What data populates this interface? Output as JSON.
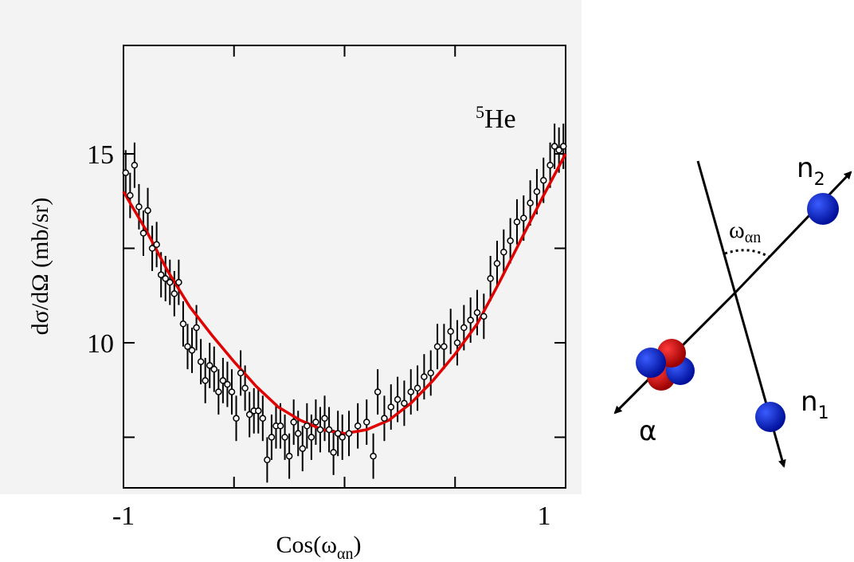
{
  "chart_data": {
    "type": "scatter",
    "annotation": {
      "mass": "5",
      "symbol": "He"
    },
    "ylabel": "dσ/dΩ (mb/sr)",
    "xlabel": {
      "prefix": "Cos(ω",
      "subscript": "αn",
      "suffix": ")"
    },
    "xlim": [
      -1,
      1
    ],
    "ylim": [
      6.16,
      17.87
    ],
    "xticks": [
      -1,
      1
    ],
    "xminor_ticks": [
      -0.5,
      0,
      0.5
    ],
    "yticks": [
      10,
      15
    ],
    "yminor_ticks": [
      7.5,
      12.5
    ],
    "marker_color": "#000000",
    "error": 0.6,
    "x": [
      -0.99,
      -0.97,
      -0.95,
      -0.93,
      -0.91,
      -0.89,
      -0.87,
      -0.85,
      -0.83,
      -0.81,
      -0.79,
      -0.77,
      -0.75,
      -0.73,
      -0.71,
      -0.69,
      -0.67,
      -0.65,
      -0.63,
      -0.61,
      -0.59,
      -0.57,
      -0.55,
      -0.53,
      -0.51,
      -0.49,
      -0.47,
      -0.45,
      -0.43,
      -0.41,
      -0.39,
      -0.37,
      -0.35,
      -0.33,
      -0.31,
      -0.29,
      -0.27,
      -0.25,
      -0.23,
      -0.21,
      -0.19,
      -0.17,
      -0.15,
      -0.13,
      -0.11,
      -0.09,
      -0.07,
      -0.05,
      -0.03,
      -0.01,
      0.02,
      0.06,
      0.1,
      0.13,
      0.15,
      0.18,
      0.21,
      0.24,
      0.27,
      0.3,
      0.33,
      0.36,
      0.39,
      0.42,
      0.45,
      0.48,
      0.51,
      0.54,
      0.57,
      0.6,
      0.63,
      0.66,
      0.69,
      0.72,
      0.75,
      0.78,
      0.81,
      0.84,
      0.87,
      0.9,
      0.93,
      0.95,
      0.97,
      0.99
    ],
    "values": [
      14.5,
      13.9,
      14.7,
      13.6,
      12.9,
      13.5,
      12.5,
      12.6,
      11.8,
      11.7,
      11.6,
      11.3,
      11.6,
      10.5,
      9.9,
      9.8,
      10.4,
      9.5,
      9.0,
      9.4,
      9.3,
      8.7,
      9.0,
      8.9,
      8.7,
      8.0,
      9.2,
      8.8,
      8.1,
      8.2,
      8.2,
      8.0,
      6.9,
      7.5,
      7.8,
      7.8,
      7.5,
      7.0,
      7.9,
      7.6,
      7.2,
      7.8,
      7.5,
      7.9,
      7.7,
      8.0,
      7.7,
      7.1,
      7.6,
      7.5,
      7.6,
      7.8,
      7.9,
      7.0,
      8.7,
      8.0,
      8.3,
      8.5,
      8.4,
      8.7,
      8.8,
      9.1,
      9.2,
      9.9,
      9.9,
      10.3,
      10.0,
      10.4,
      10.6,
      10.8,
      10.7,
      11.7,
      12.1,
      12.4,
      12.7,
      13.2,
      13.3,
      13.7,
      14.0,
      14.3,
      14.7,
      15.2,
      15.1,
      15.2
    ],
    "fit": {
      "color": "#e00000",
      "x": [
        -1,
        -0.9,
        -0.8,
        -0.7,
        -0.6,
        -0.5,
        -0.4,
        -0.3,
        -0.2,
        -0.1,
        0,
        0.1,
        0.2,
        0.3,
        0.4,
        0.5,
        0.6,
        0.7,
        0.8,
        0.9,
        1
      ],
      "values": [
        14.0,
        13.0,
        11.9,
        10.95,
        10.2,
        9.5,
        8.85,
        8.3,
        7.95,
        7.7,
        7.6,
        7.7,
        7.95,
        8.4,
        9.0,
        9.7,
        10.5,
        11.6,
        12.75,
        13.9,
        15.0
      ]
    }
  },
  "diagram": {
    "angle_label": {
      "main": "ω",
      "sub": "αn"
    },
    "n2": {
      "main": "n",
      "sub": "2"
    },
    "n1": {
      "main": "n",
      "sub": "1"
    },
    "alpha": "α"
  }
}
